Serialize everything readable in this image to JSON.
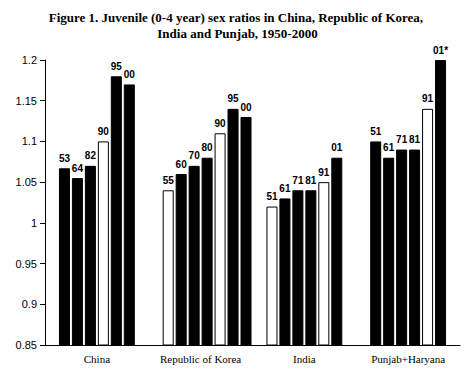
{
  "chart_data": {
    "type": "bar",
    "title": "Figure 1. Juvenile (0-4 year) sex ratios in China, Republic of Korea, India and Punjab, 1950-2000",
    "groups": [
      {
        "name": "China",
        "bars": [
          {
            "label": "53",
            "value": 1.067,
            "color": "#000000"
          },
          {
            "label": "64",
            "value": 1.055,
            "color": "#000000"
          },
          {
            "label": "82",
            "value": 1.07,
            "color": "#000000"
          },
          {
            "label": "90",
            "value": 1.1,
            "color": "#ffffff"
          },
          {
            "label": "95",
            "value": 1.18,
            "color": "#000000"
          },
          {
            "label": "00",
            "value": 1.17,
            "color": "#000000"
          }
        ]
      },
      {
        "name": "Republic of Korea",
        "bars": [
          {
            "label": "55",
            "value": 1.04,
            "color": "#ffffff"
          },
          {
            "label": "60",
            "value": 1.06,
            "color": "#000000"
          },
          {
            "label": "70",
            "value": 1.07,
            "color": "#000000"
          },
          {
            "label": "80",
            "value": 1.08,
            "color": "#000000"
          },
          {
            "label": "90",
            "value": 1.11,
            "color": "#ffffff"
          },
          {
            "label": "95",
            "value": 1.14,
            "color": "#000000"
          },
          {
            "label": "00",
            "value": 1.13,
            "color": "#000000"
          }
        ]
      },
      {
        "name": "India",
        "bars": [
          {
            "label": "51",
            "value": 1.02,
            "color": "#ffffff"
          },
          {
            "label": "61",
            "value": 1.03,
            "color": "#000000"
          },
          {
            "label": "71",
            "value": 1.04,
            "color": "#000000"
          },
          {
            "label": "81",
            "value": 1.04,
            "color": "#000000"
          },
          {
            "label": "91",
            "value": 1.05,
            "color": "#ffffff"
          },
          {
            "label": "01",
            "value": 1.08,
            "color": "#000000"
          }
        ]
      },
      {
        "name": "Punjab+Haryana",
        "bars": [
          {
            "label": "51",
            "value": 1.1,
            "color": "#000000"
          },
          {
            "label": "61",
            "value": 1.08,
            "color": "#000000"
          },
          {
            "label": "71",
            "value": 1.09,
            "color": "#000000"
          },
          {
            "label": "81",
            "value": 1.09,
            "color": "#000000"
          },
          {
            "label": "91",
            "value": 1.14,
            "color": "#ffffff"
          },
          {
            "label": "01*",
            "value": 1.2,
            "color": "#000000"
          }
        ]
      }
    ],
    "ylim": [
      0.85,
      1.2
    ],
    "yticks": [
      0.85,
      0.9,
      0.95,
      1,
      1.05,
      1.1,
      1.15,
      1.2
    ],
    "grid": false
  }
}
